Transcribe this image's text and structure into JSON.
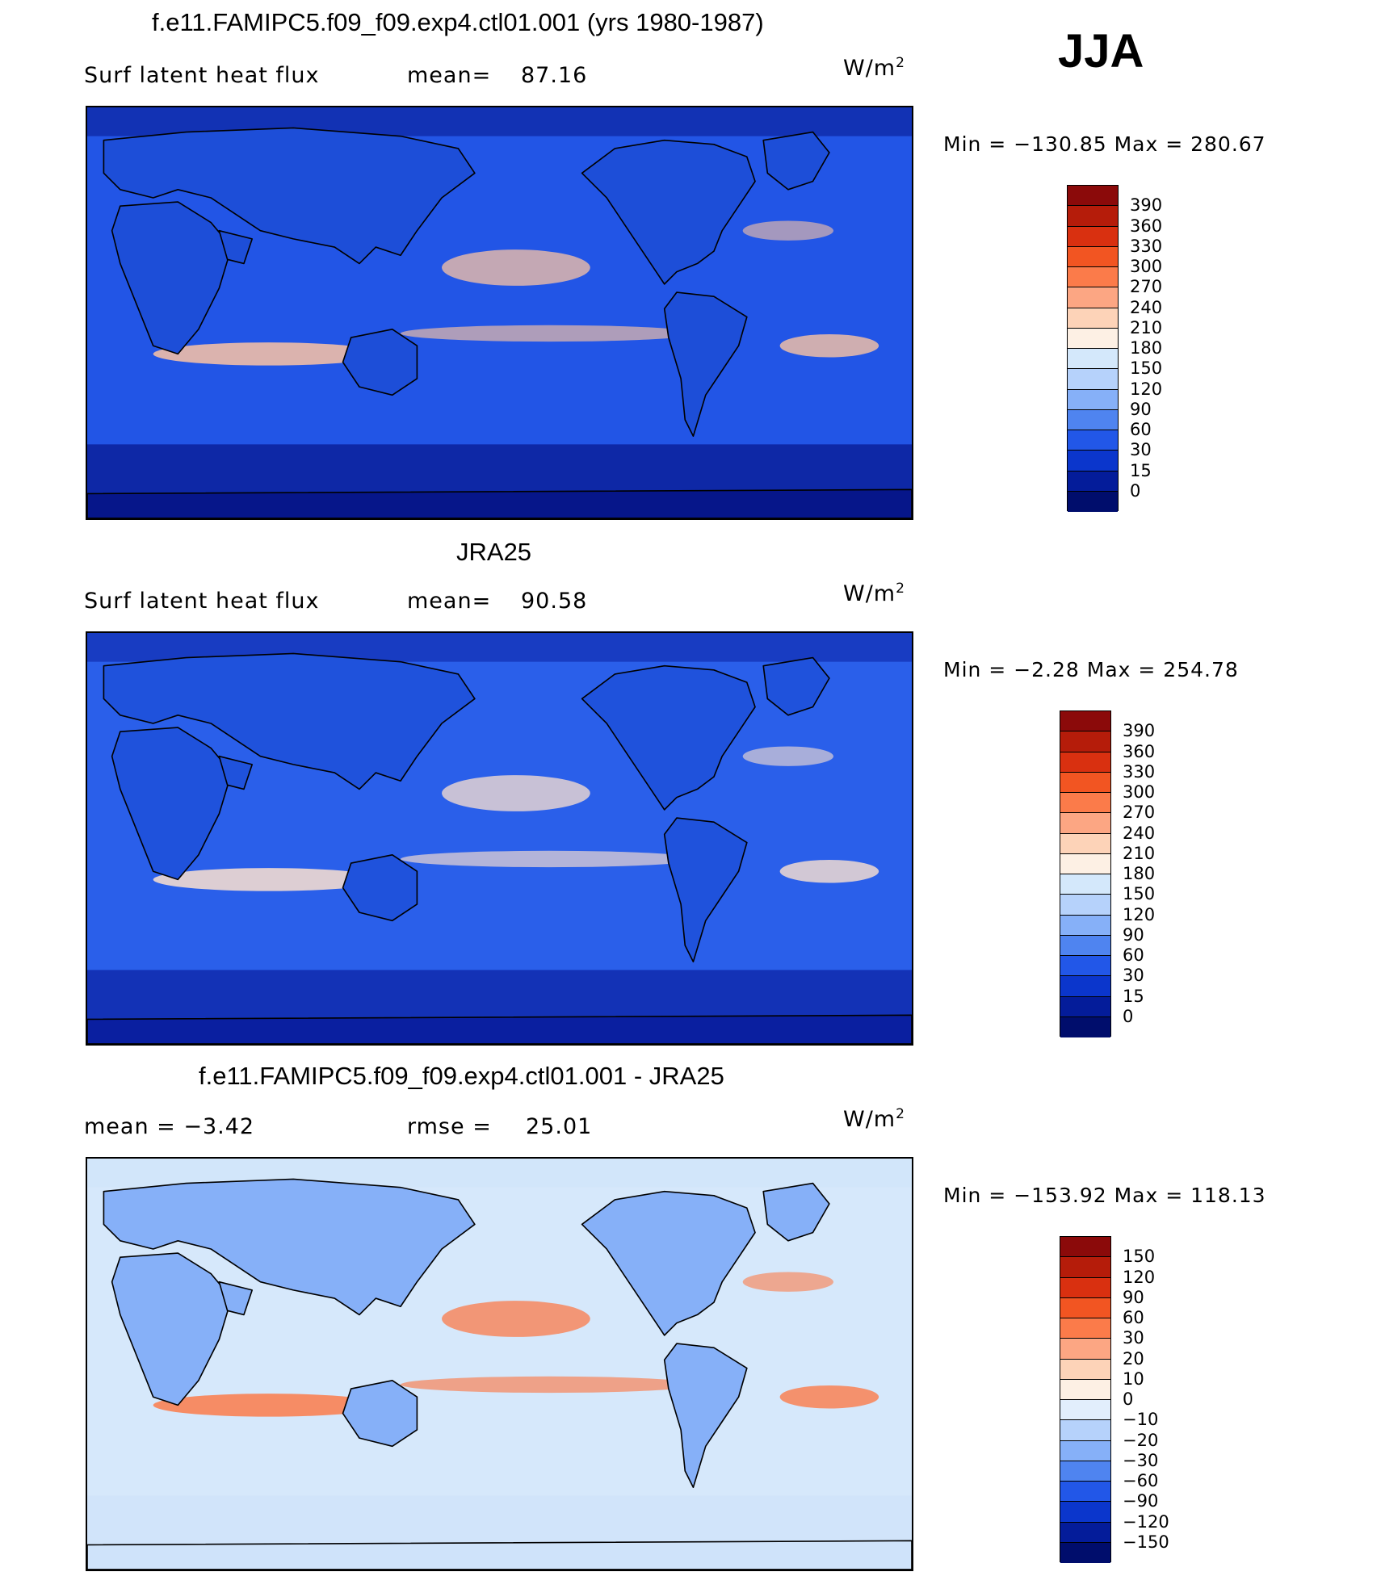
{
  "season": "JJA",
  "panels": [
    {
      "id": "model",
      "title": "f.e11.FAMIPC5.f09_f09.exp4.ctl01.001 (yrs 1980-1987)",
      "left_text": "Surf  latent  heat  flux",
      "stat_label": "mean=",
      "stat_value": "87.16",
      "unit_base": "W/m",
      "unit_exp": "2",
      "min_max": "Min  =  −130.85  Max  =  280.67",
      "colorbar": {
        "labels": [
          "390",
          "360",
          "330",
          "300",
          "270",
          "240",
          "210",
          "180",
          "150",
          "120",
          "90",
          "60",
          "30",
          "15",
          "0"
        ],
        "colors": [
          "#8b0a0a",
          "#b51c0a",
          "#d93010",
          "#f25522",
          "#fb7b4a",
          "#fca683",
          "#fdd3b8",
          "#fdf0e4",
          "#d4e8fb",
          "#b6d2fb",
          "#86b0f8",
          "#4f84f0",
          "#2257e8",
          "#0b36cc",
          "#041c9a",
          "#000d6c"
        ]
      },
      "map_palette": {
        "ocean": "#2255e6",
        "land": "#1d4ed8",
        "warm": "#fbc4a3",
        "polar": "#06168a"
      }
    },
    {
      "id": "obs",
      "title": "JRA25",
      "left_text": "Surf  latent  heat  flux",
      "stat_label": "mean=",
      "stat_value": "90.58",
      "unit_base": "W/m",
      "unit_exp": "2",
      "min_max": "Min  =    −2.28  Max  =  254.78",
      "colorbar": {
        "labels": [
          "390",
          "360",
          "330",
          "300",
          "270",
          "240",
          "210",
          "180",
          "150",
          "120",
          "90",
          "60",
          "30",
          "15",
          "0"
        ],
        "colors": [
          "#8b0a0a",
          "#b51c0a",
          "#d93010",
          "#f25522",
          "#fb7b4a",
          "#fca683",
          "#fdd3b8",
          "#fdf0e4",
          "#d4e8fb",
          "#b6d2fb",
          "#86b0f8",
          "#4f84f0",
          "#2257e8",
          "#0b36cc",
          "#041c9a",
          "#000d6c"
        ]
      },
      "map_palette": {
        "ocean": "#2a5fea",
        "land": "#1f52dc",
        "warm": "#fde2cf",
        "polar": "#0a1fa0"
      }
    },
    {
      "id": "diff",
      "title": "f.e11.FAMIPC5.f09_f09.exp4.ctl01.001 - JRA25",
      "left_text": "mean  =    −3.42",
      "stat_label": "rmse  =",
      "stat_value": "25.01",
      "unit_base": "W/m",
      "unit_exp": "2",
      "min_max": "Min  =  −153.92  Max  =  118.13",
      "colorbar": {
        "labels": [
          "150",
          "120",
          "90",
          "60",
          "30",
          "20",
          "10",
          "0",
          "−10",
          "−20",
          "−30",
          "−60",
          "−90",
          "−120",
          "−150"
        ],
        "colors": [
          "#8b0a0a",
          "#b51c0a",
          "#d93010",
          "#f25522",
          "#fb7b4a",
          "#fca683",
          "#fdd3b8",
          "#fdf0e4",
          "#e2eefc",
          "#b6d2fb",
          "#86b0f8",
          "#4f84f0",
          "#2257e8",
          "#0b36cc",
          "#041c9a",
          "#000d6c"
        ]
      },
      "map_palette": {
        "ocean": "#d6e8fb",
        "land": "#86b0f8",
        "warm": "#fb7b4a",
        "polar": "#cfe3fa"
      }
    }
  ]
}
